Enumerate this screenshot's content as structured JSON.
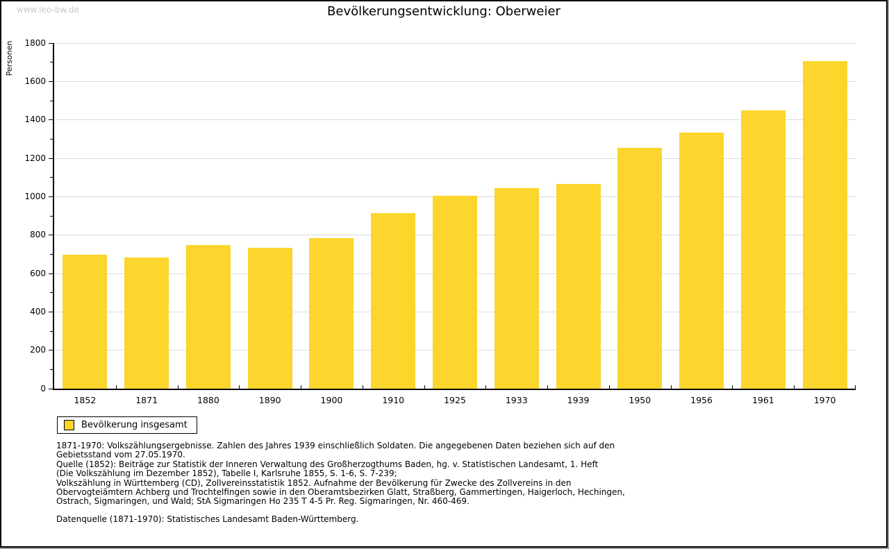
{
  "page": {
    "watermark": "www.leo-bw.de",
    "title": "Bevölkerungsentwicklung: Oberweier"
  },
  "legend": {
    "label": "Bevölkerung insgesamt",
    "swatch_color": "#fcd52d"
  },
  "notes": {
    "lines": [
      "1871-1970: Volkszählungsergebnisse. Zahlen des Jahres 1939 einschließlich Soldaten. Die angegebenen Daten beziehen sich auf den",
      "Gebietsstand vom 27.05.1970.",
      "Quelle (1852): Beiträge zur Statistik der Inneren Verwaltung des Großherzogthums Baden, hg. v. Statistischen Landesamt, 1. Heft",
      "(Die Volkszählung im Dezember 1852), Tabelle I, Karlsruhe 1855, S. 1-6, S. 7-239;",
      "Volkszählung in Württemberg (CD), Zollvereinsstatistik 1852. Aufnahme der Bevölkerung für Zwecke des Zollvereins in den",
      "Obervogteiämtern Achberg und Trochtelfingen sowie in den Oberamtsbezirken Glatt, Straßberg, Gammertingen, Haigerloch, Hechingen,",
      "Ostrach, Sigmaringen, und Wald; StA Sigmaringen Ho 235 T 4-5 Pr. Reg. Sigmaringen, Nr. 460-469."
    ],
    "datasource": "Datenquelle (1871-1970): Statistisches Landesamt Baden-Württemberg."
  },
  "chart_data": {
    "type": "bar",
    "title": "Bevölkerungsentwicklung: Oberweier",
    "xlabel": "",
    "ylabel": "Personen",
    "categories": [
      "1852",
      "1871",
      "1880",
      "1890",
      "1900",
      "1910",
      "1925",
      "1933",
      "1939",
      "1950",
      "1956",
      "1961",
      "1970"
    ],
    "series": [
      {
        "name": "Bevölkerung insgesamt",
        "values": [
          697,
          683,
          750,
          735,
          783,
          913,
          1006,
          1043,
          1066,
          1253,
          1334,
          1448,
          1707
        ]
      }
    ],
    "ylim": [
      0,
      1800
    ],
    "ytick_interval": 200,
    "ytick_minor_interval": 100,
    "grid": true,
    "legend_position": "bottom-left",
    "colors": {
      "bar": "#fcd52d",
      "grid": "#dcdcdc",
      "axis": "#000000",
      "watermark": "#c9c9c9"
    }
  }
}
